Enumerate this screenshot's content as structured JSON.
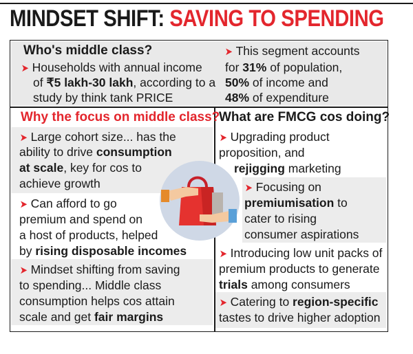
{
  "title": {
    "part1": "MINDSET SHIFT:",
    "part2": "SAVING TO SPENDING"
  },
  "who": {
    "heading": "Who's middle class?",
    "line1": "Households with annual income",
    "line2a": "of ",
    "line2b": "₹5 lakh-30 lakh",
    "line2c": ", according to a",
    "line3": "study by think tank PRICE"
  },
  "segment": {
    "line1": "This segment accounts",
    "line2a": "for ",
    "line2b": "31%",
    "line2c": " of population,",
    "line3a": "50%",
    "line3b": " of income and",
    "line4a": "48%",
    "line4b": " of expenditure"
  },
  "left": {
    "heading": "Why the focus on middle class?",
    "b1": {
      "l1": "Large cohort size... has the",
      "l2a": "ability to drive ",
      "l2b": "consumption",
      "l3a": "at scale",
      "l3b": ", key for cos to",
      "l4": "achieve growth"
    },
    "b2": {
      "l1": "Can afford to go",
      "l2": "premium and spend on",
      "l3": "a host of products, helped",
      "l4a": "by ",
      "l4b": "rising disposable incomes"
    },
    "b3": {
      "l1": "Mindset shifting from saving",
      "l2": "to spending... Middle class",
      "l3": "consumption helps cos attain",
      "l4a": "scale and get ",
      "l4b": "fair margins"
    }
  },
  "right": {
    "heading": "What are FMCG cos doing?",
    "b1": {
      "l1": "Upgrading product",
      "l2": "proposition, and",
      "l3a": "rejigging",
      "l3b": " marketing"
    },
    "b2": {
      "l1": "Focusing on",
      "l2a": "premiumisation",
      "l2b": " to",
      "l3": "cater to rising",
      "l4": "consumer aspirations"
    },
    "b3": {
      "l1": "Introducing low unit packs of",
      "l2": "premium products to generate",
      "l3a": "trials",
      "l3b": " among consumers"
    },
    "b4": {
      "l1a": "Catering to ",
      "l1b": "region-specific",
      "l2": "tastes to drive higher adoption"
    }
  },
  "colors": {
    "accent": "#e3262d",
    "panel": "#e9e9e9",
    "art_circle": "#cfd8e6"
  },
  "arrow_glyph": "➤"
}
